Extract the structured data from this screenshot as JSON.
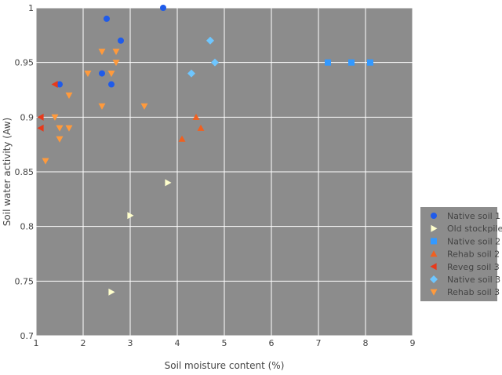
{
  "chart_data": {
    "type": "scatter",
    "title": "",
    "xlabel": "Soil moisture content (%)",
    "ylabel": "Soil water activity (Aw)",
    "xlim": [
      1,
      9
    ],
    "ylim": [
      0.7,
      1.0
    ],
    "xticks": [
      1,
      2,
      3,
      4,
      5,
      6,
      7,
      8,
      9
    ],
    "xtick_labels": [
      "1",
      "2",
      "3",
      "4",
      "5",
      "6",
      "7",
      "8",
      "9"
    ],
    "yticks": [
      0.7,
      0.75,
      0.8,
      0.85,
      0.9,
      0.95,
      1.0
    ],
    "ytick_labels": [
      "0.7",
      "0.75",
      "0.8",
      "0.85",
      "0.9",
      "0.95",
      "1"
    ],
    "grid": true,
    "plot_background": "#8c8c8c",
    "grid_color": "#ffffff",
    "legend_position": "right",
    "legend_background": "#8c8c8c",
    "series": [
      {
        "name": "Native soil 1",
        "marker": "circle",
        "color": "#1f5bea",
        "points": [
          [
            1.5,
            0.93
          ],
          [
            2.4,
            0.94
          ],
          [
            2.5,
            0.99
          ],
          [
            2.6,
            0.93
          ],
          [
            2.8,
            0.97
          ],
          [
            3.7,
            1.0
          ]
        ]
      },
      {
        "name": "Old stockpile",
        "marker": "triangle-right",
        "color": "#ffffcc",
        "points": [
          [
            2.6,
            0.74
          ],
          [
            3.0,
            0.81
          ],
          [
            3.8,
            0.84
          ]
        ]
      },
      {
        "name": "Native soil 2",
        "marker": "square",
        "color": "#3399ff",
        "points": [
          [
            7.2,
            0.95
          ],
          [
            7.7,
            0.95
          ],
          [
            8.1,
            0.95
          ]
        ]
      },
      {
        "name": "Rehab soil 2",
        "marker": "triangle-up",
        "color": "#f06020",
        "points": [
          [
            4.1,
            0.88
          ],
          [
            4.4,
            0.9
          ],
          [
            4.5,
            0.89
          ]
        ]
      },
      {
        "name": "Reveg soil 3",
        "marker": "triangle-left",
        "color": "#e8391a",
        "points": [
          [
            1.1,
            0.89
          ],
          [
            1.1,
            0.9
          ],
          [
            1.4,
            0.93
          ]
        ]
      },
      {
        "name": "Native soil 3",
        "marker": "diamond",
        "color": "#6ec6ff",
        "points": [
          [
            4.3,
            0.94
          ],
          [
            4.7,
            0.97
          ],
          [
            4.8,
            0.95
          ]
        ]
      },
      {
        "name": "Rehab soil 3",
        "marker": "triangle-down",
        "color": "#ff9a3c",
        "points": [
          [
            1.2,
            0.86
          ],
          [
            1.4,
            0.9
          ],
          [
            1.5,
            0.88
          ],
          [
            1.5,
            0.89
          ],
          [
            1.7,
            0.89
          ],
          [
            1.7,
            0.92
          ],
          [
            2.1,
            0.94
          ],
          [
            2.4,
            0.91
          ],
          [
            2.4,
            0.96
          ],
          [
            2.6,
            0.94
          ],
          [
            2.7,
            0.95
          ],
          [
            2.7,
            0.96
          ],
          [
            3.3,
            0.91
          ]
        ]
      }
    ]
  }
}
